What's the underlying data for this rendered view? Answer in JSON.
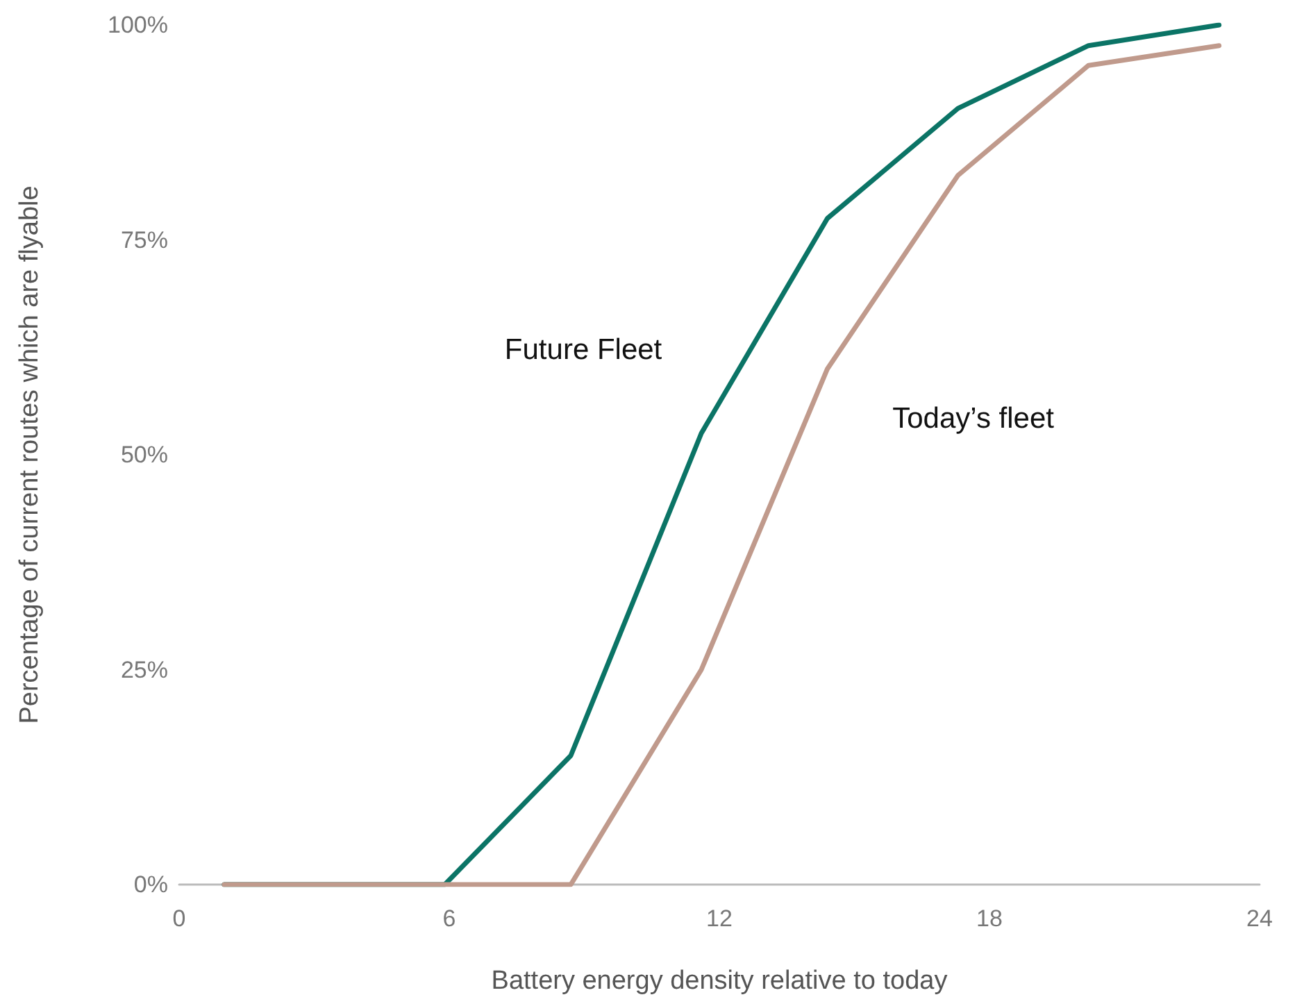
{
  "chart_data": {
    "type": "line",
    "xlabel": "Battery energy density relative to today",
    "ylabel": "Percentage of current routes which are flyable",
    "xlim": [
      0,
      24
    ],
    "xticks": [
      0,
      6,
      12,
      18,
      24
    ],
    "ylim": [
      0,
      100
    ],
    "yticks": [
      {
        "value": 0,
        "label": "0%"
      },
      {
        "value": 25,
        "label": "25%"
      },
      {
        "value": 50,
        "label": "50%"
      },
      {
        "value": 75,
        "label": "75%"
      },
      {
        "value": 100,
        "label": "100%"
      }
    ],
    "grid": false,
    "legend": false,
    "marker": "none",
    "line_style": "solid",
    "series": [
      {
        "name": "Future Fleet",
        "color": "#0b7466",
        "x": [
          1,
          5.9,
          8.7,
          11.6,
          14.4,
          17.3,
          20.2,
          23.1
        ],
        "values": [
          0,
          0,
          15,
          52.5,
          77.5,
          90.3,
          97.6,
          100
        ]
      },
      {
        "name": "Today’s fleet",
        "color": "#c09a8c",
        "x": [
          1,
          5.9,
          8.7,
          11.6,
          14.4,
          17.3,
          20.2,
          23.1
        ],
        "values": [
          0,
          0,
          0,
          25,
          60,
          82.5,
          95.3,
          97.6
        ]
      }
    ]
  }
}
